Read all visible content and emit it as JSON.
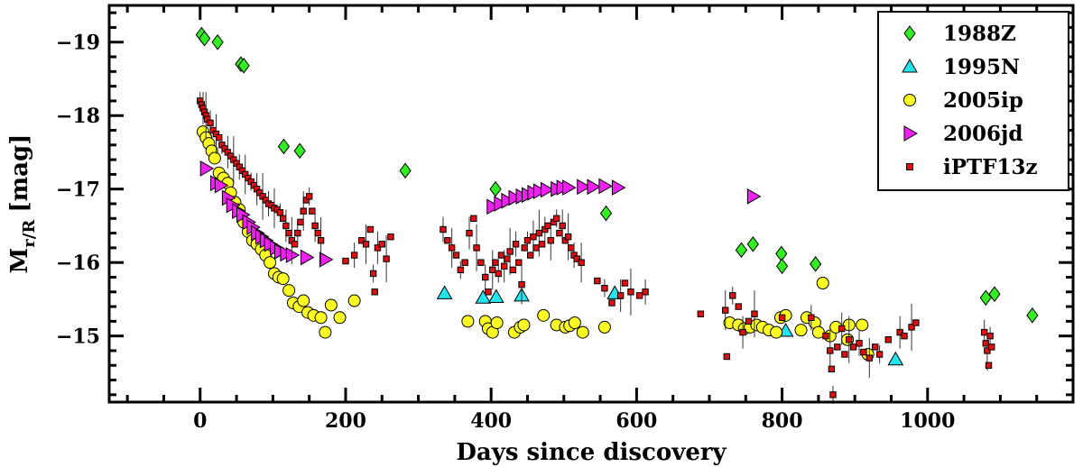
{
  "chart_data": {
    "type": "scatter",
    "title": "",
    "xlabel": "Days since discovery",
    "ylabel": {
      "main": "M",
      "sub": "r/R",
      "unit": "[mag]"
    },
    "xlim": [
      -125,
      1200
    ],
    "ylim": [
      -19.5,
      -14.1
    ],
    "y_inverted": true,
    "x_ticks": [
      0,
      200,
      400,
      600,
      800,
      1000
    ],
    "x_minor_step": 50,
    "y_ticks": [
      -19,
      -18,
      -17,
      -16,
      -15
    ],
    "y_tick_labels": [
      "−19",
      "−18",
      "−17",
      "−16",
      "−15"
    ],
    "y_minor_step": 0.2,
    "legend_position": "top-right",
    "series": [
      {
        "name": "1988Z",
        "marker": "diamond",
        "color": "#33ee22",
        "points": [
          [
            2,
            -19.1
          ],
          [
            6,
            -19.05
          ],
          [
            24,
            -19.0
          ],
          [
            56,
            -18.7
          ],
          [
            60,
            -18.68
          ],
          [
            115,
            -17.58
          ],
          [
            137,
            -17.52
          ],
          [
            282,
            -17.25
          ],
          [
            406,
            -17.0
          ],
          [
            558,
            -16.67
          ],
          [
            744,
            -16.17
          ],
          [
            760,
            -16.25
          ],
          [
            799,
            -16.12
          ],
          [
            800,
            -15.95
          ],
          [
            846,
            -15.98
          ],
          [
            1080,
            -15.52
          ],
          [
            1092,
            -15.57
          ],
          [
            1144,
            -15.28
          ]
        ]
      },
      {
        "name": "1995N",
        "marker": "triangle-up",
        "color": "#22e5ee",
        "points": [
          [
            336,
            -15.58
          ],
          [
            389,
            -15.52
          ],
          [
            407,
            -15.53
          ],
          [
            442,
            -15.55
          ],
          [
            570,
            -15.58
          ],
          [
            805,
            -15.07
          ],
          [
            956,
            -14.68
          ]
        ]
      },
      {
        "name": "2005ip",
        "marker": "circle",
        "color": "#ffff22",
        "points": [
          [
            4,
            -17.78
          ],
          [
            8,
            -17.7
          ],
          [
            12,
            -17.62
          ],
          [
            16,
            -17.52
          ],
          [
            20,
            -17.42
          ],
          [
            26,
            -17.22
          ],
          [
            32,
            -17.15
          ],
          [
            38,
            -17.08
          ],
          [
            42,
            -16.95
          ],
          [
            48,
            -16.82
          ],
          [
            54,
            -16.72
          ],
          [
            60,
            -16.55
          ],
          [
            66,
            -16.42
          ],
          [
            72,
            -16.3
          ],
          [
            78,
            -16.25
          ],
          [
            84,
            -16.18
          ],
          [
            90,
            -16.1
          ],
          [
            96,
            -16.0
          ],
          [
            102,
            -15.85
          ],
          [
            108,
            -15.8
          ],
          [
            114,
            -15.78
          ],
          [
            122,
            -15.62
          ],
          [
            128,
            -15.45
          ],
          [
            136,
            -15.4
          ],
          [
            142,
            -15.48
          ],
          [
            148,
            -15.32
          ],
          [
            156,
            -15.28
          ],
          [
            166,
            -15.25
          ],
          [
            172,
            -15.05
          ],
          [
            180,
            -15.42
          ],
          [
            192,
            -15.25
          ],
          [
            212,
            -15.48
          ],
          [
            368,
            -15.2
          ],
          [
            392,
            -15.2
          ],
          [
            396,
            -15.1
          ],
          [
            402,
            -15.05
          ],
          [
            408,
            -15.18
          ],
          [
            432,
            -15.05
          ],
          [
            440,
            -15.12
          ],
          [
            445,
            -15.15
          ],
          [
            472,
            -15.28
          ],
          [
            490,
            -15.15
          ],
          [
            502,
            -15.12
          ],
          [
            508,
            -15.14
          ],
          [
            515,
            -15.18
          ],
          [
            526,
            -15.05
          ],
          [
            556,
            -15.12
          ],
          [
            728,
            -15.18
          ],
          [
            740,
            -15.15
          ],
          [
            748,
            -15.1
          ],
          [
            756,
            -15.12
          ],
          [
            765,
            -15.15
          ],
          [
            773,
            -15.12
          ],
          [
            782,
            -15.08
          ],
          [
            792,
            -15.05
          ],
          [
            798,
            -15.25
          ],
          [
            805,
            -15.28
          ],
          [
            826,
            -15.08
          ],
          [
            834,
            -15.25
          ],
          [
            845,
            -15.18
          ],
          [
            850,
            -15.05
          ],
          [
            856,
            -15.72
          ],
          [
            866,
            -15.0
          ],
          [
            874,
            -15.12
          ],
          [
            890,
            -14.95
          ],
          [
            892,
            -15.15
          ],
          [
            910,
            -15.15
          ],
          [
            918,
            -14.75
          ]
        ]
      },
      {
        "name": "2006jd",
        "marker": "triangle-right",
        "color": "#ee22ee",
        "points": [
          [
            8,
            -17.28
          ],
          [
            22,
            -17.08
          ],
          [
            28,
            -17.05
          ],
          [
            38,
            -16.88
          ],
          [
            44,
            -16.78
          ],
          [
            52,
            -16.7
          ],
          [
            58,
            -16.65
          ],
          [
            66,
            -16.55
          ],
          [
            72,
            -16.48
          ],
          [
            78,
            -16.4
          ],
          [
            84,
            -16.35
          ],
          [
            90,
            -16.3
          ],
          [
            96,
            -16.25
          ],
          [
            104,
            -16.2
          ],
          [
            110,
            -16.15
          ],
          [
            118,
            -16.12
          ],
          [
            126,
            -16.1
          ],
          [
            146,
            -16.07
          ],
          [
            172,
            -16.04
          ],
          [
            402,
            -16.76
          ],
          [
            412,
            -16.8
          ],
          [
            422,
            -16.84
          ],
          [
            432,
            -16.88
          ],
          [
            442,
            -16.9
          ],
          [
            450,
            -16.92
          ],
          [
            458,
            -16.95
          ],
          [
            466,
            -16.97
          ],
          [
            476,
            -16.99
          ],
          [
            490,
            -17.0
          ],
          [
            498,
            -17.02
          ],
          [
            506,
            -17.02
          ],
          [
            526,
            -17.03
          ],
          [
            540,
            -17.03
          ],
          [
            556,
            -17.04
          ],
          [
            574,
            -17.02
          ],
          [
            760,
            -16.9
          ]
        ]
      },
      {
        "name": "iPTF13z",
        "marker": "square",
        "color": "#dd1111",
        "points": [
          [
            0,
            -18.2
          ],
          [
            2,
            -18.15
          ],
          [
            4,
            -18.1
          ],
          [
            6,
            -18.05
          ],
          [
            8,
            -18.0
          ],
          [
            10,
            -17.95
          ],
          [
            14,
            -17.9
          ],
          [
            18,
            -17.8
          ],
          [
            22,
            -17.75
          ],
          [
            26,
            -17.7
          ],
          [
            30,
            -17.6
          ],
          [
            34,
            -17.55
          ],
          [
            38,
            -17.5
          ],
          [
            42,
            -17.45
          ],
          [
            46,
            -17.4
          ],
          [
            50,
            -17.35
          ],
          [
            54,
            -17.3
          ],
          [
            58,
            -17.25
          ],
          [
            62,
            -17.2
          ],
          [
            66,
            -17.15
          ],
          [
            70,
            -17.1
          ],
          [
            74,
            -17.05
          ],
          [
            78,
            -17.0
          ],
          [
            82,
            -16.95
          ],
          [
            86,
            -16.9
          ],
          [
            90,
            -16.85
          ],
          [
            94,
            -16.8
          ],
          [
            98,
            -16.78
          ],
          [
            102,
            -16.74
          ],
          [
            106,
            -16.72
          ],
          [
            110,
            -16.68
          ],
          [
            114,
            -16.6
          ],
          [
            118,
            -16.5
          ],
          [
            122,
            -16.4
          ],
          [
            126,
            -16.3
          ],
          [
            130,
            -16.25
          ],
          [
            134,
            -16.4
          ],
          [
            138,
            -16.55
          ],
          [
            142,
            -16.7
          ],
          [
            146,
            -16.85
          ],
          [
            150,
            -16.9
          ],
          [
            154,
            -16.7
          ],
          [
            158,
            -16.5
          ],
          [
            162,
            -16.4
          ],
          [
            166,
            -16.3
          ],
          [
            200,
            -16.02
          ],
          [
            212,
            -16.1
          ],
          [
            222,
            -16.3
          ],
          [
            228,
            -16.25
          ],
          [
            234,
            -16.45
          ],
          [
            238,
            -15.85
          ],
          [
            240,
            -15.6
          ],
          [
            244,
            -16.2
          ],
          [
            250,
            -16.25
          ],
          [
            256,
            -16.05
          ],
          [
            262,
            -16.35
          ],
          [
            334,
            -16.45
          ],
          [
            340,
            -16.3
          ],
          [
            346,
            -16.2
          ],
          [
            352,
            -16.1
          ],
          [
            358,
            -15.9
          ],
          [
            364,
            -16.0
          ],
          [
            370,
            -16.4
          ],
          [
            376,
            -16.6
          ],
          [
            380,
            -16.2
          ],
          [
            386,
            -16.0
          ],
          [
            392,
            -15.8
          ],
          [
            396,
            -15.6
          ],
          [
            402,
            -15.9
          ],
          [
            406,
            -16.0
          ],
          [
            410,
            -15.85
          ],
          [
            414,
            -16.1
          ],
          [
            418,
            -15.95
          ],
          [
            422,
            -16.05
          ],
          [
            426,
            -16.15
          ],
          [
            430,
            -15.9
          ],
          [
            434,
            -16.25
          ],
          [
            438,
            -16.0
          ],
          [
            442,
            -15.7
          ],
          [
            446,
            -16.2
          ],
          [
            450,
            -16.3
          ],
          [
            454,
            -16.1
          ],
          [
            458,
            -16.35
          ],
          [
            462,
            -16.2
          ],
          [
            466,
            -16.4
          ],
          [
            470,
            -16.25
          ],
          [
            474,
            -16.45
          ],
          [
            478,
            -16.5
          ],
          [
            482,
            -16.3
          ],
          [
            486,
            -16.55
          ],
          [
            490,
            -16.6
          ],
          [
            494,
            -16.4
          ],
          [
            498,
            -16.5
          ],
          [
            502,
            -16.3
          ],
          [
            506,
            -16.35
          ],
          [
            510,
            -16.2
          ],
          [
            514,
            -16.1
          ],
          [
            518,
            -16.05
          ],
          [
            524,
            -16.0
          ],
          [
            546,
            -15.75
          ],
          [
            556,
            -15.65
          ],
          [
            566,
            -15.45
          ],
          [
            578,
            -15.55
          ],
          [
            584,
            -15.72
          ],
          [
            592,
            -15.6
          ],
          [
            604,
            -15.55
          ],
          [
            612,
            -15.6
          ],
          [
            688,
            -15.3
          ],
          [
            722,
            -15.35
          ],
          [
            724,
            -14.72
          ],
          [
            732,
            -15.55
          ],
          [
            740,
            -15.4
          ],
          [
            746,
            -15.05
          ],
          [
            754,
            -15.2
          ],
          [
            762,
            -15.3
          ],
          [
            800,
            -15.25
          ],
          [
            840,
            -15.25
          ],
          [
            860,
            -15.0
          ],
          [
            866,
            -14.8
          ],
          [
            868,
            -14.55
          ],
          [
            870,
            -14.2
          ],
          [
            876,
            -14.85
          ],
          [
            882,
            -15.1
          ],
          [
            886,
            -14.75
          ],
          [
            892,
            -14.95
          ],
          [
            898,
            -14.85
          ],
          [
            906,
            -14.9
          ],
          [
            912,
            -14.78
          ],
          [
            920,
            -14.7
          ],
          [
            928,
            -14.85
          ],
          [
            934,
            -14.75
          ],
          [
            946,
            -14.95
          ],
          [
            962,
            -15.05
          ],
          [
            968,
            -15.0
          ],
          [
            978,
            -15.12
          ],
          [
            984,
            -15.18
          ],
          [
            1078,
            -15.05
          ],
          [
            1080,
            -14.9
          ],
          [
            1082,
            -14.8
          ],
          [
            1084,
            -14.6
          ],
          [
            1086,
            -15.0
          ],
          [
            1088,
            -14.85
          ]
        ]
      }
    ]
  }
}
